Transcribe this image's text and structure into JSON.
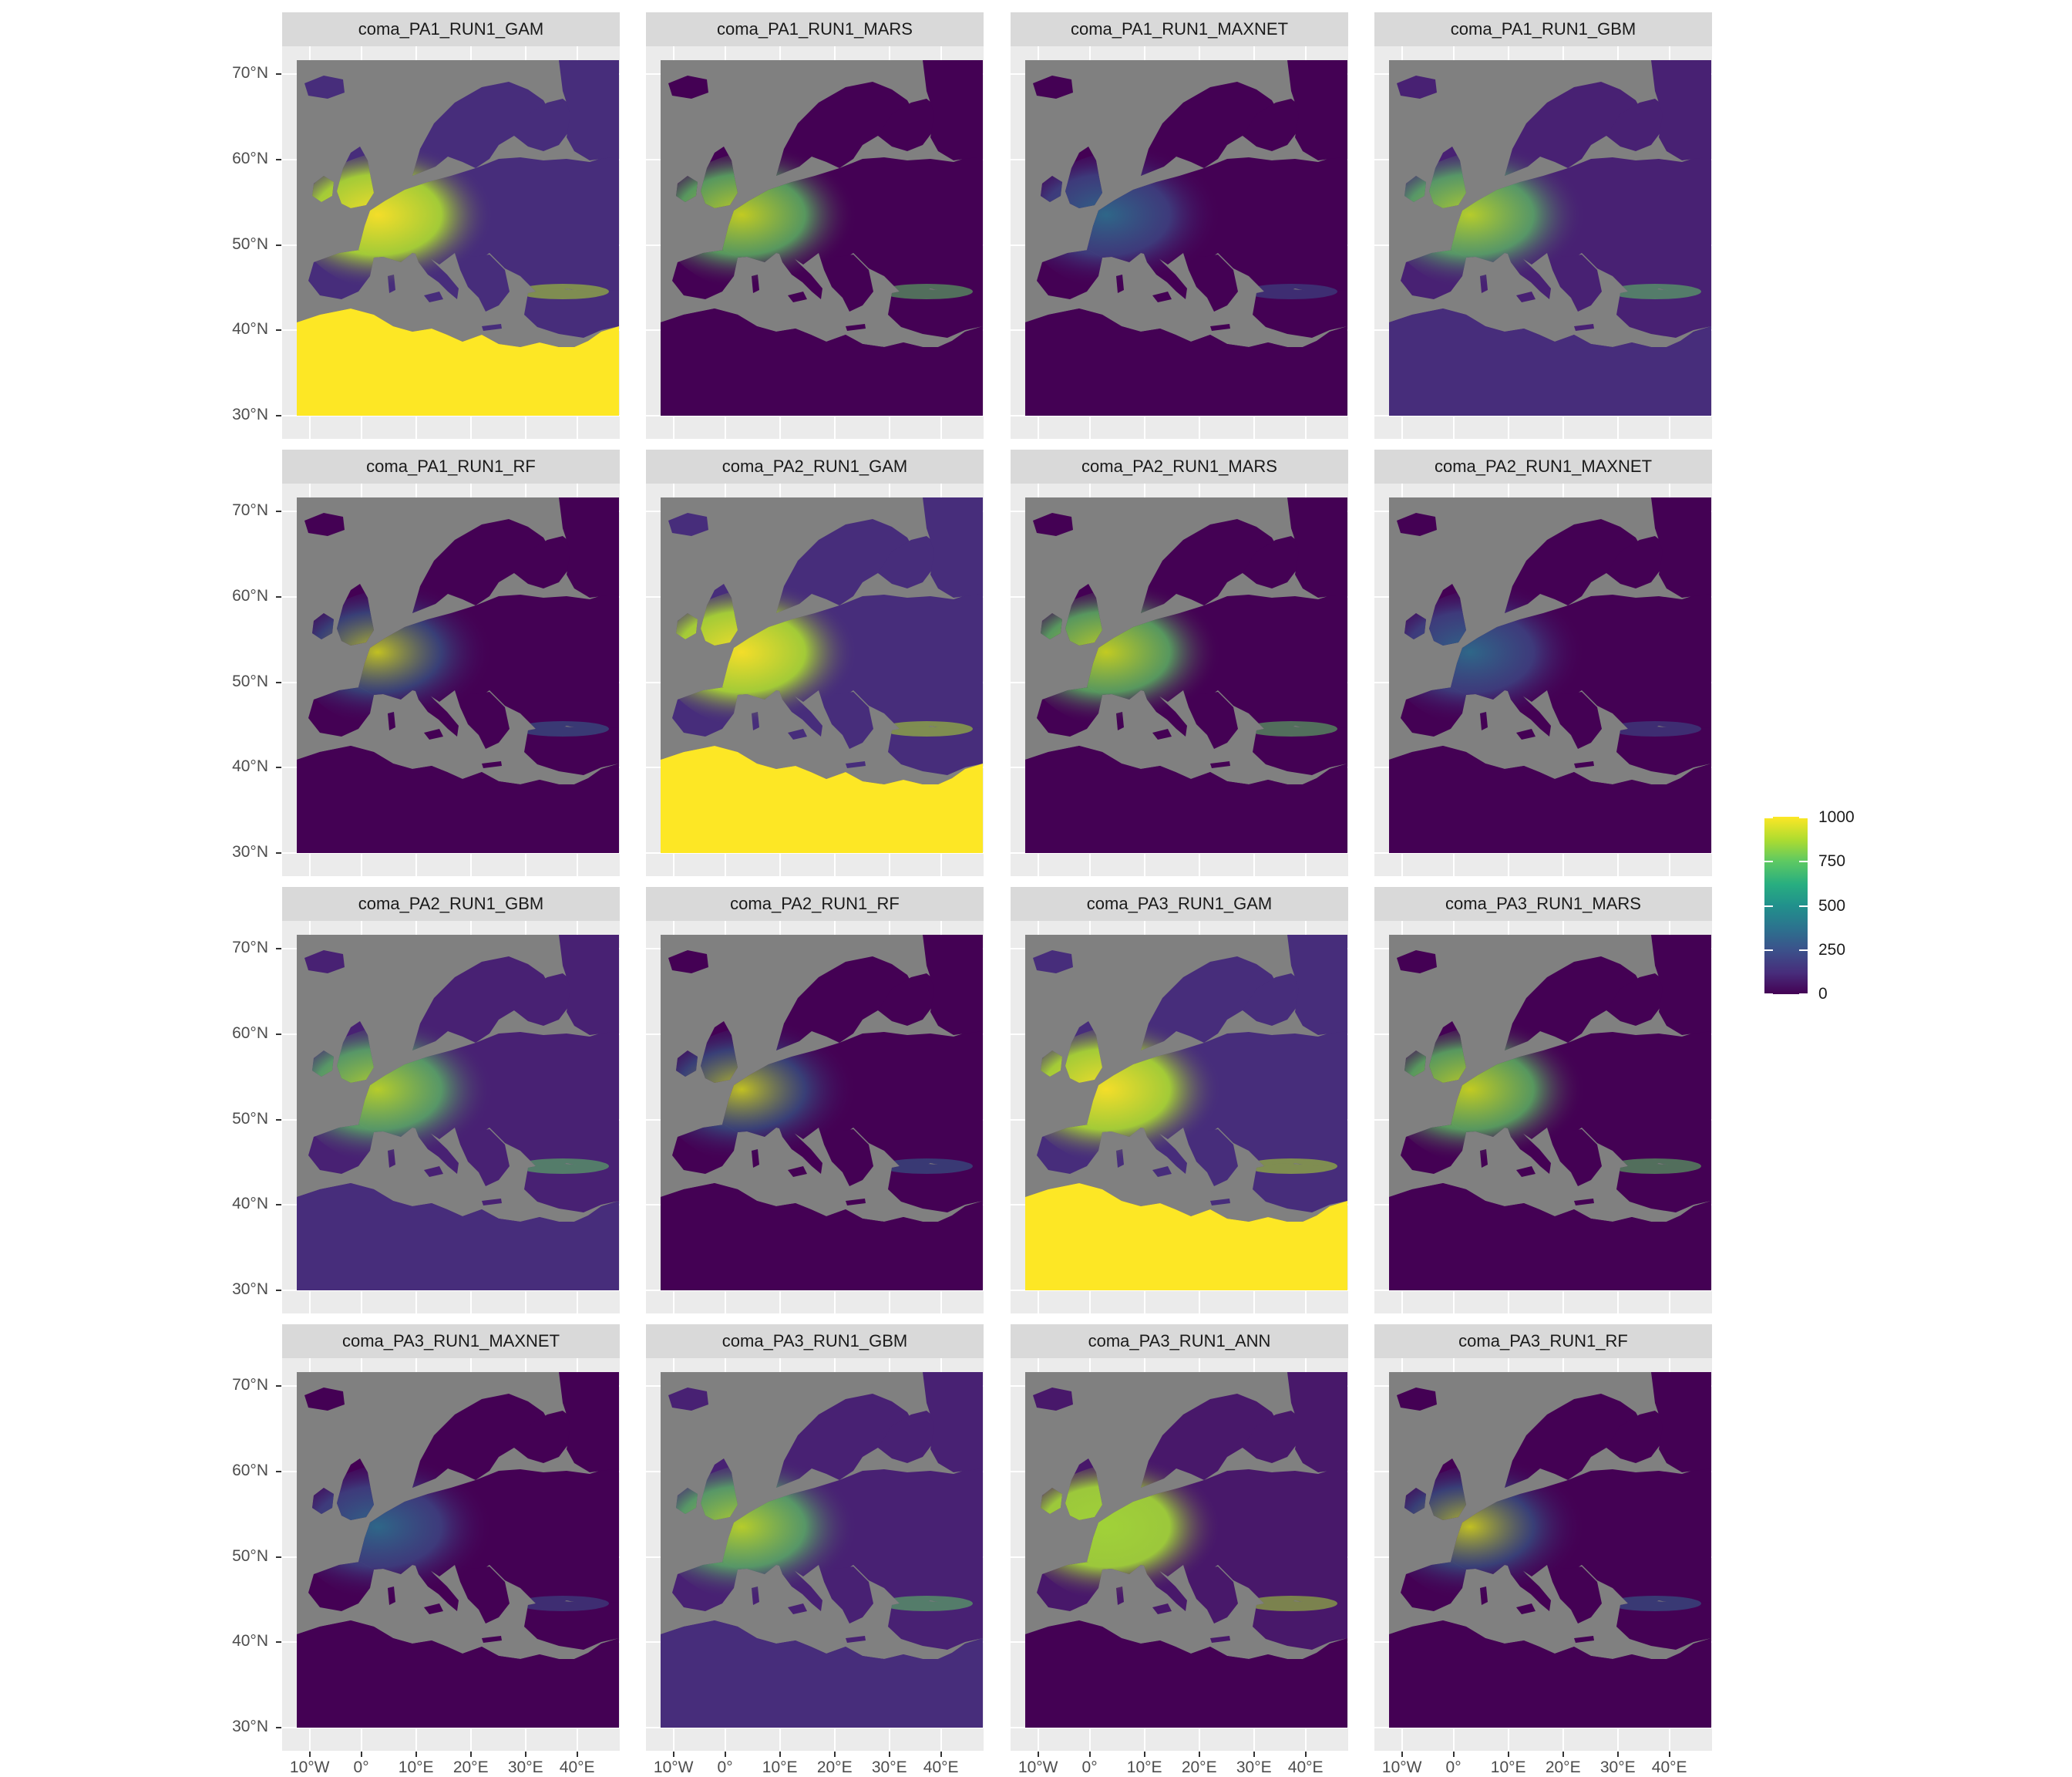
{
  "colorbar": {
    "min": 0,
    "max": 1000,
    "palette": [
      "#440154",
      "#472d7b",
      "#3b528b",
      "#2c728e",
      "#21918c",
      "#28ae80",
      "#5ec962",
      "#addc30",
      "#fde725"
    ],
    "ticks": [
      "1000",
      "750",
      "500",
      "250",
      "0"
    ]
  },
  "colors": {
    "panel_bg": "#ebebeb",
    "strip_bg": "#d9d9d9",
    "water": "#808080",
    "grid": "#ffffff"
  },
  "axes": {
    "lat_ticks": [
      "70°N",
      "60°N",
      "50°N",
      "40°N",
      "30°N"
    ],
    "lon_ticks": [
      "10°W",
      "0°",
      "10°E",
      "20°E",
      "30°E",
      "40°E"
    ]
  },
  "panels": [
    {
      "title": "coma_PA1_RUN1_GAM",
      "pattern": "gam"
    },
    {
      "title": "coma_PA1_RUN1_MARS",
      "pattern": "mars"
    },
    {
      "title": "coma_PA1_RUN1_MAXNET",
      "pattern": "maxnet"
    },
    {
      "title": "coma_PA1_RUN1_GBM",
      "pattern": "gbm"
    },
    {
      "title": "coma_PA1_RUN1_RF",
      "pattern": "rf"
    },
    {
      "title": "coma_PA2_RUN1_GAM",
      "pattern": "gam"
    },
    {
      "title": "coma_PA2_RUN1_MARS",
      "pattern": "mars"
    },
    {
      "title": "coma_PA2_RUN1_MAXNET",
      "pattern": "maxnet"
    },
    {
      "title": "coma_PA2_RUN1_GBM",
      "pattern": "gbm"
    },
    {
      "title": "coma_PA2_RUN1_RF",
      "pattern": "rf"
    },
    {
      "title": "coma_PA3_RUN1_GAM",
      "pattern": "gam"
    },
    {
      "title": "coma_PA3_RUN1_MARS",
      "pattern": "mars"
    },
    {
      "title": "coma_PA3_RUN1_MAXNET",
      "pattern": "maxnet"
    },
    {
      "title": "coma_PA3_RUN1_GBM",
      "pattern": "gbm"
    },
    {
      "title": "coma_PA3_RUN1_ANN",
      "pattern": "ann"
    },
    {
      "title": "coma_PA3_RUN1_RF",
      "pattern": "rf"
    }
  ]
}
